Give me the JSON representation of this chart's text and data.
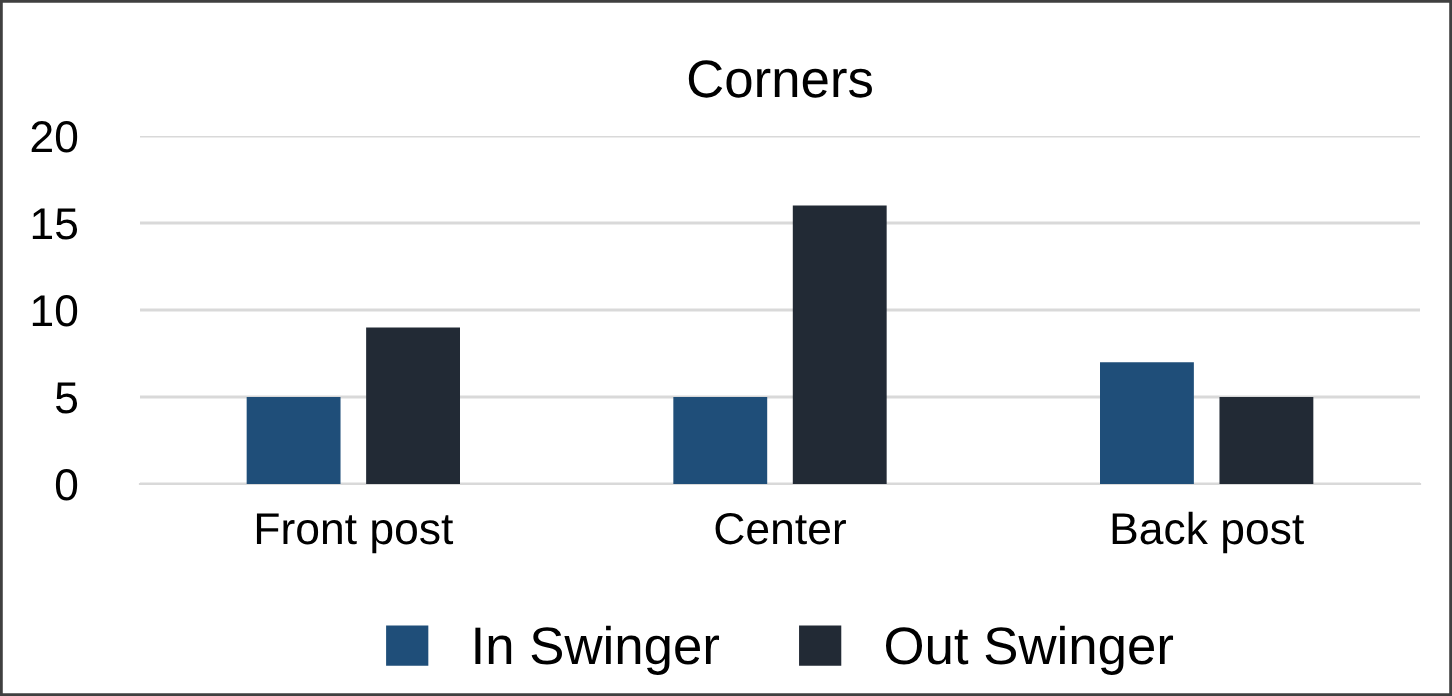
{
  "chart_data": {
    "type": "bar",
    "title": "Corners",
    "categories": [
      "Front post",
      "Center",
      "Back post"
    ],
    "series": [
      {
        "name": "In Swinger",
        "color": "#1f4e79",
        "values": [
          5,
          5,
          7
        ]
      },
      {
        "name": "Out Swinger",
        "color": "#222a35",
        "values": [
          9,
          16,
          5
        ]
      }
    ],
    "ylim": [
      0,
      20
    ],
    "yticks": [
      0,
      5,
      10,
      15,
      20
    ],
    "grid": "y",
    "legend": "bottom"
  }
}
